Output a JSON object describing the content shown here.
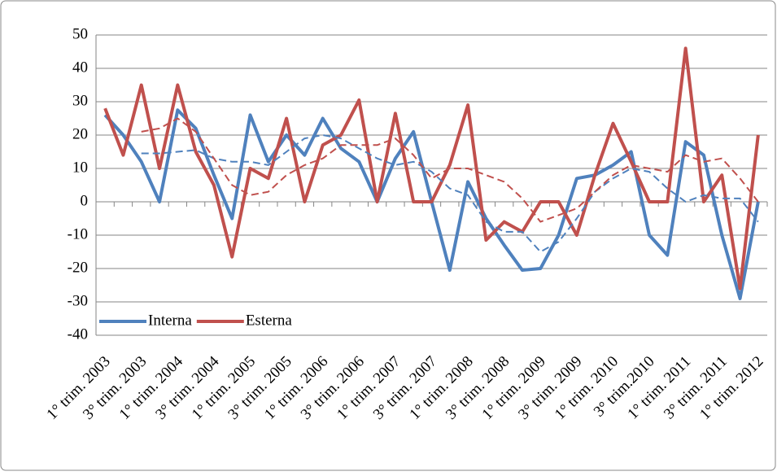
{
  "chart_data": {
    "type": "line",
    "categories": [
      "1° trim. 2003",
      null,
      "3° trim. 2003",
      null,
      "1° trim. 2004",
      null,
      "3° trim. 2004",
      null,
      "1° trim. 2005",
      null,
      "3° trim. 2005",
      null,
      "1° trim. 2006",
      null,
      "3° trim. 2006",
      null,
      "1° trim. 2007",
      null,
      "3° trim. 2007",
      null,
      "1° trim. 2008",
      null,
      "3° trim. 2008",
      null,
      "1° trim. 2009",
      null,
      "3° trim. 2009",
      null,
      "1° trim. 2010",
      null,
      "3° trim.2010",
      null,
      "1° trim. 2011",
      null,
      "3° trim. 2011",
      null,
      "1° trim. 2012"
    ],
    "series": [
      {
        "name": "Interna",
        "color": "#4f81bd",
        "values": [
          26,
          20,
          12,
          0,
          27.5,
          22,
          8,
          -5,
          26,
          12,
          20,
          14,
          25,
          16,
          12,
          0,
          13,
          21,
          0,
          -20.5,
          6,
          -5,
          -13,
          -20.5,
          -20,
          -10,
          7,
          8,
          11,
          15,
          -10,
          -16,
          18,
          14,
          -10,
          -29,
          0
        ]
      },
      {
        "name": "Esterna",
        "color": "#c0504d",
        "values": [
          28,
          14,
          35,
          10,
          35,
          15,
          5,
          -16.5,
          10,
          7,
          25,
          0,
          17,
          20,
          30.5,
          0,
          26.5,
          0,
          0,
          11,
          29,
          -11.5,
          -6,
          -9,
          0,
          0,
          -10,
          8,
          23.5,
          12,
          0,
          0,
          46,
          0,
          8,
          -26,
          20
        ]
      },
      {
        "color": "#4f81bd",
        "dashed": true,
        "values": [
          null,
          null,
          14.5,
          14.5,
          15,
          15.5,
          13,
          12,
          12,
          11,
          15,
          19,
          20,
          19,
          16,
          13,
          11,
          12,
          9,
          4,
          2,
          -6,
          -9,
          -9,
          -15,
          -12,
          -5,
          3,
          7,
          10,
          9,
          4,
          0,
          2,
          1,
          1,
          -6
        ]
      },
      {
        "color": "#c0504d",
        "dashed": true,
        "values": [
          null,
          null,
          21,
          22,
          25,
          21,
          13,
          5,
          2,
          3,
          8,
          11,
          13,
          17,
          17,
          17,
          19,
          14,
          7,
          10,
          10,
          8,
          6,
          1,
          -6,
          -4,
          -2,
          3,
          8,
          11,
          10,
          9,
          14,
          12,
          13,
          7,
          0
        ]
      }
    ],
    "ylim": [
      -40,
      50
    ],
    "yticks": [
      -40,
      -30,
      -20,
      -10,
      0,
      10,
      20,
      30,
      40,
      50
    ],
    "grid": true,
    "legend": "lower left"
  }
}
